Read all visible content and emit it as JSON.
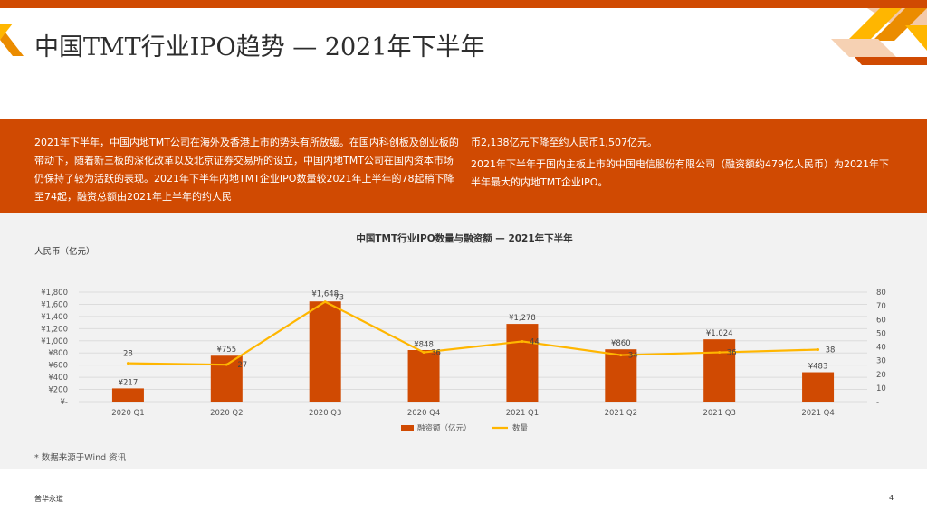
{
  "slide": {
    "title": "中国TMT行业IPO趋势 — 2021年下半年",
    "summary_col1": "2021年下半年，中国内地TMT公司在海外及香港上市的势头有所放缓。在国内科创板及创业板的带动下，随着新三板的深化改革以及北京证券交易所的设立，中国内地TMT公司在国内资本市场仍保持了较为活跃的表现。2021年下半年内地TMT企业IPO数量较2021年上半年的78起稍下降至74起，融资总额由2021年上半年的约人民",
    "summary_col2_p1": "币2,138亿元下降至约人民币1,507亿元。",
    "summary_col2_p2": "2021年下半年于国内主板上市的中国电信股份有限公司（融资额约479亿人民币）为2021年下半年最大的内地TMT企业IPO。",
    "unit_label": "人民币（亿元）",
    "source_note": "* 数据来源于Wind 资讯",
    "footer_left": "普华永道",
    "page_number": "4"
  },
  "colors": {
    "brand_orange": "#d04a02",
    "line_yellow": "#ffb600",
    "text_dark": "#2d2d2d"
  },
  "chart_data": {
    "type": "bar",
    "title": "中国TMT行业IPO数量与融资额 — 2021年下半年",
    "categories": [
      "2020 Q1",
      "2020 Q2",
      "2020 Q3",
      "2020 Q4",
      "2021 Q1",
      "2021 Q2",
      "2021 Q3",
      "2021 Q4"
    ],
    "series": [
      {
        "name": "融资额（亿元）",
        "type": "bar",
        "axis": "left",
        "values": [
          217,
          755,
          1648,
          848,
          1278,
          860,
          1024,
          483
        ],
        "labels": [
          "¥217",
          "¥755",
          "¥1,648",
          "¥848",
          "¥1,278",
          "¥860",
          "¥1,024",
          "¥483"
        ]
      },
      {
        "name": "数量",
        "type": "line",
        "axis": "right",
        "values": [
          28,
          27,
          73,
          36,
          44,
          34,
          36,
          38
        ],
        "labels": [
          "28",
          "27",
          "73",
          "36",
          "44",
          "34",
          "36",
          "38"
        ]
      }
    ],
    "left_axis": {
      "ylim": [
        0,
        1800
      ],
      "ticks": [
        0,
        200,
        400,
        600,
        800,
        1000,
        1200,
        1400,
        1600,
        1800
      ],
      "tick_labels": [
        "¥-",
        "¥200",
        "¥400",
        "¥600",
        "¥800",
        "¥1,000",
        "¥1,200",
        "¥1,400",
        "¥1,600",
        "¥1,800"
      ]
    },
    "right_axis": {
      "ylim": [
        0,
        80
      ],
      "ticks": [
        0,
        10,
        20,
        30,
        40,
        50,
        60,
        70,
        80
      ],
      "tick_labels": [
        "-",
        "10",
        "20",
        "30",
        "40",
        "50",
        "60",
        "70",
        "80"
      ]
    },
    "grid": true,
    "legend": "bottom"
  }
}
